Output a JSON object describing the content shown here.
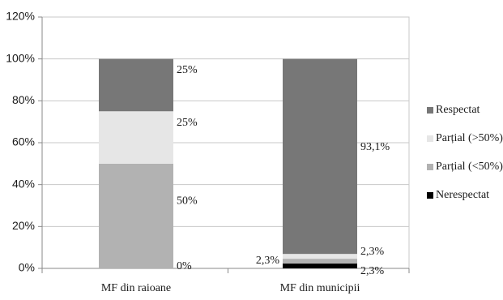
{
  "chart_data": {
    "type": "bar",
    "stacked": true,
    "categories": [
      "MF din raioane",
      "MF din municipii"
    ],
    "series": [
      {
        "name": "Nerespectat",
        "values": [
          0,
          2.3
        ],
        "labels": [
          "0%",
          "2,3%"
        ],
        "color": "#000000"
      },
      {
        "name": "Parțial (<50%)",
        "values": [
          50,
          2.3
        ],
        "labels": [
          "50%",
          "2,3%"
        ],
        "color": "#b2b2b2"
      },
      {
        "name": "Parțial (>50%)",
        "values": [
          25,
          2.3
        ],
        "labels": [
          "25%",
          "2,3%"
        ],
        "color": "#e6e6e6"
      },
      {
        "name": "Respectat",
        "values": [
          25,
          93.1
        ],
        "labels": [
          "25%",
          "93,1%"
        ],
        "color": "#777777"
      }
    ],
    "ylim": [
      0,
      120
    ],
    "yticks": [
      "0%",
      "20%",
      "40%",
      "60%",
      "80%",
      "100%",
      "120%"
    ],
    "grid": true,
    "legend_position": "right"
  }
}
